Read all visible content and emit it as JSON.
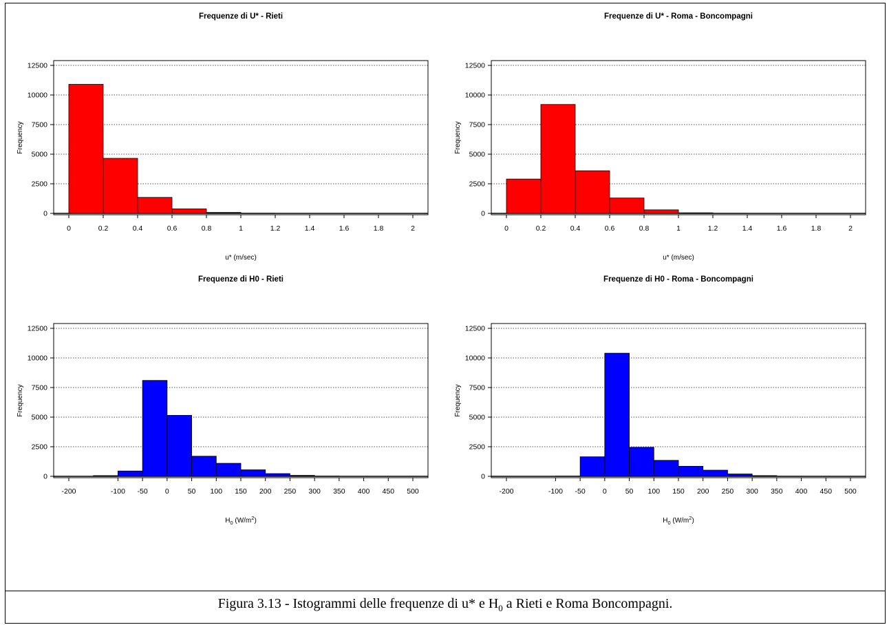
{
  "caption": {
    "text_before": "Figura 3.13 - Istogrammi delle frequenze di u* e H",
    "subscript": "0",
    "text_after": " a Rieti e Roma Boncompagni."
  },
  "colors": {
    "red_bars": "#ff0000",
    "blue_bars": "#0000ff",
    "grid": "#555555"
  },
  "chart_data": [
    {
      "type": "bar",
      "title": "Frequenze di U* -  Rieti",
      "ylabel": "Frequency",
      "xlabel": "u* (m/sec)",
      "xlabel_base": "",
      "xlabel_sub": "",
      "xlabel_unit_base": "",
      "xlabel_unit_sup": "",
      "xlabel_close": "",
      "color": "#ff0000",
      "xlim": [
        0,
        2
      ],
      "ylim": [
        0,
        12500
      ],
      "x_ticks": [
        "0",
        "0.2",
        "0.4",
        "0.6",
        "0.8",
        "1",
        "1.2",
        "1.4",
        "1.6",
        "1.8",
        "2"
      ],
      "x_tick_values": [
        0,
        0.2,
        0.4,
        0.6,
        0.8,
        1,
        1.2,
        1.4,
        1.6,
        1.8,
        2
      ],
      "y_ticks": [
        "0",
        "2500",
        "5000",
        "7500",
        "10000",
        "12500"
      ],
      "y_tick_values": [
        0,
        2500,
        5000,
        7500,
        10000,
        12500
      ],
      "grid": true,
      "bins": [
        {
          "from": 0.0,
          "to": 0.2,
          "count": 10900
        },
        {
          "from": 0.2,
          "to": 0.4,
          "count": 4650
        },
        {
          "from": 0.4,
          "to": 0.6,
          "count": 1350
        },
        {
          "from": 0.6,
          "to": 0.8,
          "count": 380
        },
        {
          "from": 0.8,
          "to": 1.0,
          "count": 80
        },
        {
          "from": 1.0,
          "to": 1.2,
          "count": 15
        },
        {
          "from": 1.2,
          "to": 1.4,
          "count": 5
        },
        {
          "from": 1.4,
          "to": 1.6,
          "count": 2
        },
        {
          "from": 1.6,
          "to": 1.8,
          "count": 1
        },
        {
          "from": 1.8,
          "to": 2.0,
          "count": 1
        }
      ]
    },
    {
      "type": "bar",
      "title": "Frequenze di U* -  Roma - Boncompagni",
      "ylabel": "Frequency",
      "xlabel": "u* (m/sec)",
      "xlabel_base": "",
      "xlabel_sub": "",
      "xlabel_unit_base": "",
      "xlabel_unit_sup": "",
      "xlabel_close": "",
      "color": "#ff0000",
      "xlim": [
        0,
        2
      ],
      "ylim": [
        0,
        12500
      ],
      "x_ticks": [
        "0",
        "0.2",
        "0.4",
        "0.6",
        "0.8",
        "1",
        "1.2",
        "1.4",
        "1.6",
        "1.8",
        "2"
      ],
      "x_tick_values": [
        0,
        0.2,
        0.4,
        0.6,
        0.8,
        1,
        1.2,
        1.4,
        1.6,
        1.8,
        2
      ],
      "y_ticks": [
        "0",
        "2500",
        "5000",
        "7500",
        "10000",
        "12500"
      ],
      "y_tick_values": [
        0,
        2500,
        5000,
        7500,
        10000,
        12500
      ],
      "grid": true,
      "bins": [
        {
          "from": 0.0,
          "to": 0.2,
          "count": 2900
        },
        {
          "from": 0.2,
          "to": 0.4,
          "count": 9200
        },
        {
          "from": 0.4,
          "to": 0.6,
          "count": 3600
        },
        {
          "from": 0.6,
          "to": 0.8,
          "count": 1300
        },
        {
          "from": 0.8,
          "to": 1.0,
          "count": 300
        },
        {
          "from": 1.0,
          "to": 1.2,
          "count": 50
        },
        {
          "from": 1.2,
          "to": 1.4,
          "count": 10
        },
        {
          "from": 1.4,
          "to": 1.6,
          "count": 3
        },
        {
          "from": 1.6,
          "to": 1.8,
          "count": 1
        },
        {
          "from": 1.8,
          "to": 2.0,
          "count": 1
        }
      ]
    },
    {
      "type": "bar",
      "title": "Frequenze di H0 -  Rieti",
      "ylabel": "Frequency",
      "xlabel": "",
      "xlabel_base": "H",
      "xlabel_sub": "0",
      "xlabel_unit_base": " (W/m",
      "xlabel_unit_sup": "2",
      "xlabel_close": ")",
      "color": "#0000ff",
      "xlim": [
        -200,
        500
      ],
      "ylim": [
        0,
        12500
      ],
      "x_ticks": [
        "-200",
        "-100",
        "-50",
        "0",
        "50",
        "100",
        "150",
        "200",
        "250",
        "300",
        "350",
        "400",
        "450",
        "500"
      ],
      "x_tick_values": [
        -200,
        -100,
        -50,
        0,
        50,
        100,
        150,
        200,
        250,
        300,
        350,
        400,
        450,
        500
      ],
      "y_ticks": [
        "0",
        "2500",
        "5000",
        "7500",
        "10000",
        "12500"
      ],
      "y_tick_values": [
        0,
        2500,
        5000,
        7500,
        10000,
        12500
      ],
      "grid": true,
      "bins": [
        {
          "from": -200,
          "to": -150,
          "count": 0
        },
        {
          "from": -150,
          "to": -100,
          "count": 60
        },
        {
          "from": -100,
          "to": -50,
          "count": 450
        },
        {
          "from": -50,
          "to": 0,
          "count": 8100
        },
        {
          "from": 0,
          "to": 50,
          "count": 5150
        },
        {
          "from": 50,
          "to": 100,
          "count": 1700
        },
        {
          "from": 100,
          "to": 150,
          "count": 1100
        },
        {
          "from": 150,
          "to": 200,
          "count": 550
        },
        {
          "from": 200,
          "to": 250,
          "count": 230
        },
        {
          "from": 250,
          "to": 300,
          "count": 80
        },
        {
          "from": 300,
          "to": 350,
          "count": 20
        },
        {
          "from": 350,
          "to": 400,
          "count": 5
        },
        {
          "from": 400,
          "to": 450,
          "count": 2
        },
        {
          "from": 450,
          "to": 500,
          "count": 1
        }
      ]
    },
    {
      "type": "bar",
      "title": "Frequenze di H0 -  Roma - Boncompagni",
      "ylabel": "Frequency",
      "xlabel": "",
      "xlabel_base": "H",
      "xlabel_sub": "0",
      "xlabel_unit_base": " (W/m",
      "xlabel_unit_sup": "2",
      "xlabel_close": ")",
      "color": "#0000ff",
      "xlim": [
        -200,
        500
      ],
      "ylim": [
        0,
        12500
      ],
      "x_ticks": [
        "-200",
        "-100",
        "-50",
        "0",
        "50",
        "100",
        "150",
        "200",
        "250",
        "300",
        "350",
        "400",
        "450",
        "500"
      ],
      "x_tick_values": [
        -200,
        -100,
        -50,
        0,
        50,
        100,
        150,
        200,
        250,
        300,
        350,
        400,
        450,
        500
      ],
      "y_ticks": [
        "0",
        "2500",
        "5000",
        "7500",
        "10000",
        "12500"
      ],
      "y_tick_values": [
        0,
        2500,
        5000,
        7500,
        10000,
        12500
      ],
      "grid": true,
      "bins": [
        {
          "from": -200,
          "to": -150,
          "count": 0
        },
        {
          "from": -150,
          "to": -100,
          "count": 2
        },
        {
          "from": -100,
          "to": -50,
          "count": 20
        },
        {
          "from": -50,
          "to": 0,
          "count": 1650
        },
        {
          "from": 0,
          "to": 50,
          "count": 10400
        },
        {
          "from": 50,
          "to": 100,
          "count": 2450
        },
        {
          "from": 100,
          "to": 150,
          "count": 1350
        },
        {
          "from": 150,
          "to": 200,
          "count": 850
        },
        {
          "from": 200,
          "to": 250,
          "count": 520
        },
        {
          "from": 250,
          "to": 300,
          "count": 200
        },
        {
          "from": 300,
          "to": 350,
          "count": 60
        },
        {
          "from": 350,
          "to": 400,
          "count": 10
        },
        {
          "from": 400,
          "to": 450,
          "count": 3
        },
        {
          "from": 450,
          "to": 500,
          "count": 1
        }
      ]
    }
  ]
}
